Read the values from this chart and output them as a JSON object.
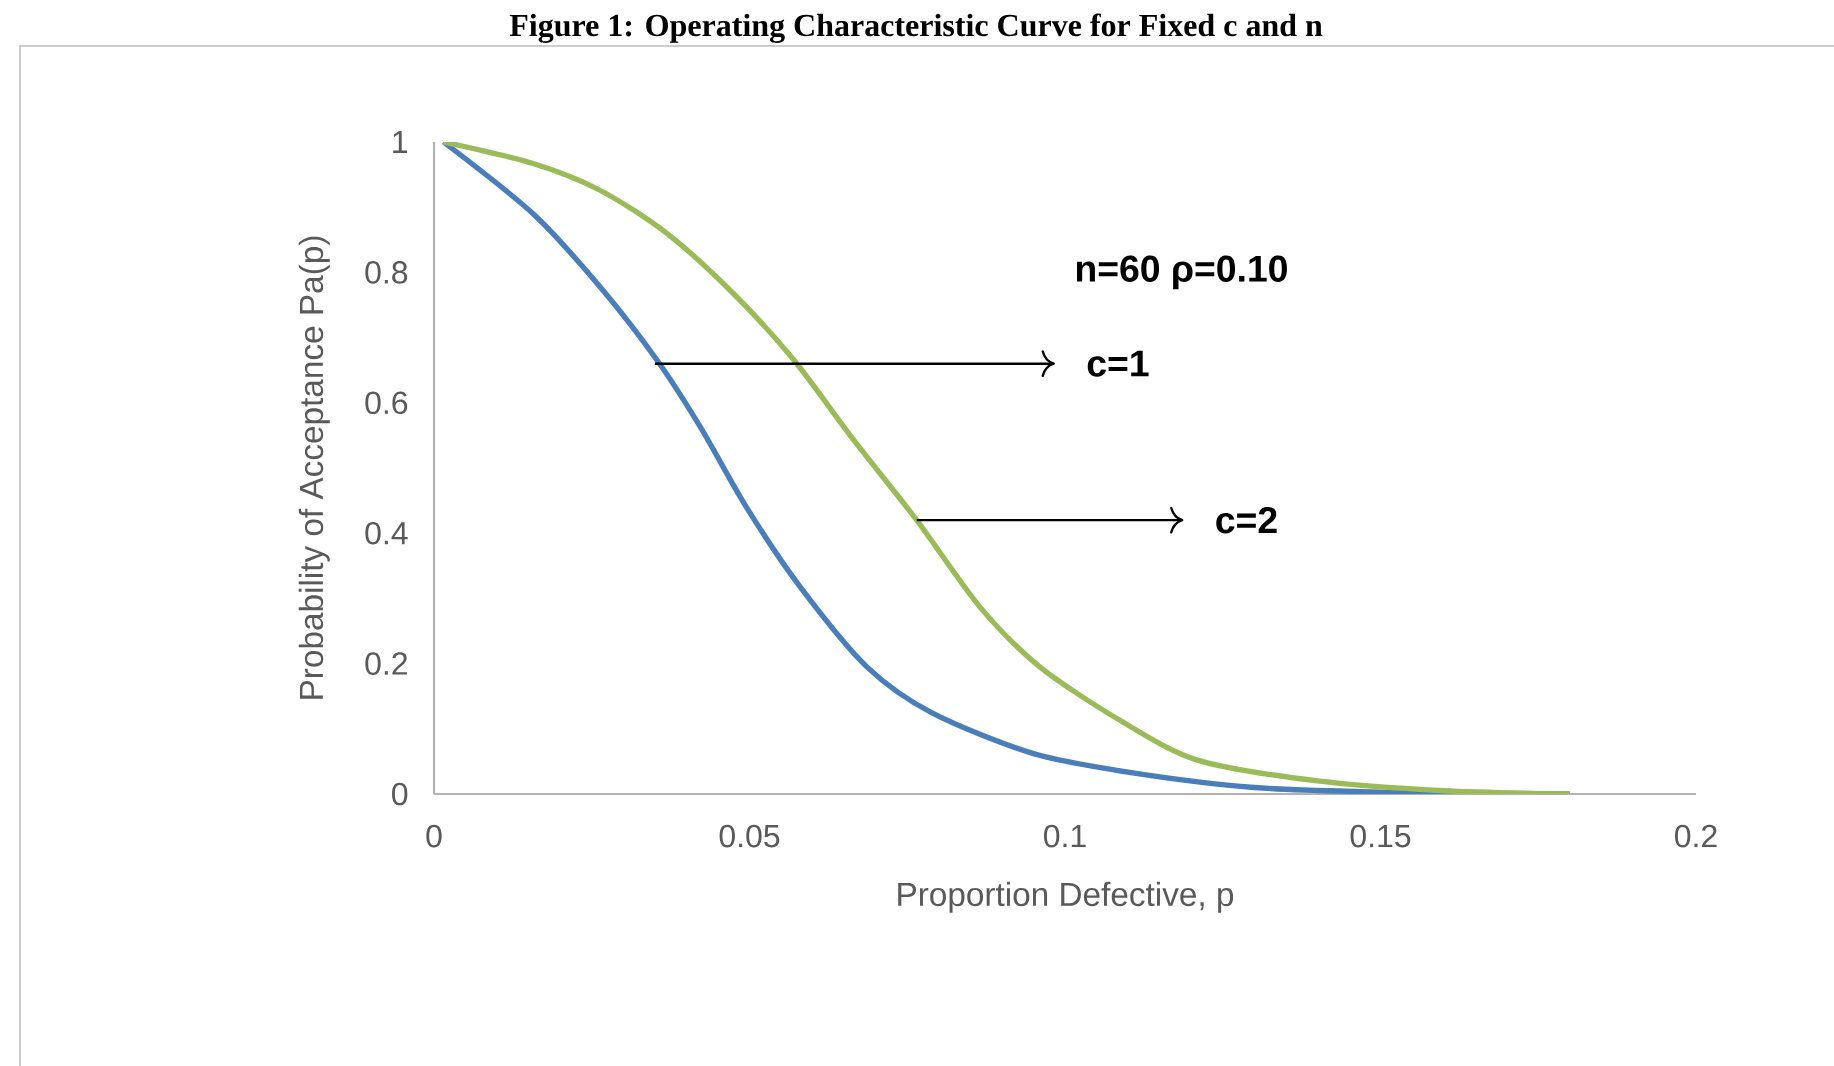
{
  "chart_data": {
    "type": "line",
    "title": "Figure 1: Operating Characteristic Curve for Fixed c and n",
    "xlabel": "Proportion Defective, p",
    "ylabel": "Probability of Acceptance Pa(p)",
    "xlim": [
      0,
      0.2
    ],
    "ylim": [
      0,
      1
    ],
    "xticks": [
      0,
      0.05,
      0.1,
      0.15,
      0.2
    ],
    "yticks": [
      0,
      0.2,
      0.4,
      0.6,
      0.8,
      1
    ],
    "marker": "none",
    "line_style": "solid",
    "series": [
      {
        "color": "#4a7ebb",
        "x": [
          0.0015,
          0.0157,
          0.0263,
          0.0353,
          0.0422,
          0.0495,
          0.058,
          0.0686,
          0.079,
          0.095,
          0.111,
          0.13,
          0.15,
          0.18
        ],
        "values": [
          1.0,
          0.89,
          0.778,
          0.666,
          0.563,
          0.44,
          0.318,
          0.195,
          0.124,
          0.062,
          0.032,
          0.01,
          0.003,
          0.0
        ]
      },
      {
        "color": "#9bbb59",
        "x": [
          0.0015,
          0.0157,
          0.0263,
          0.0369,
          0.0474,
          0.057,
          0.0665,
          0.0765,
          0.0865,
          0.096,
          0.1087,
          0.121,
          0.14,
          0.16,
          0.18
        ],
        "values": [
          1.0,
          0.967,
          0.926,
          0.86,
          0.768,
          0.666,
          0.543,
          0.42,
          0.287,
          0.195,
          0.113,
          0.052,
          0.02,
          0.005,
          0.0
        ]
      }
    ],
    "annotations": [
      "n=60 ρ=0.10",
      {
        "text": "c=1",
        "x": 0.035,
        "y": 0.66
      },
      {
        "text": "c=2",
        "x": 0.0765,
        "y": 0.42
      }
    ]
  }
}
